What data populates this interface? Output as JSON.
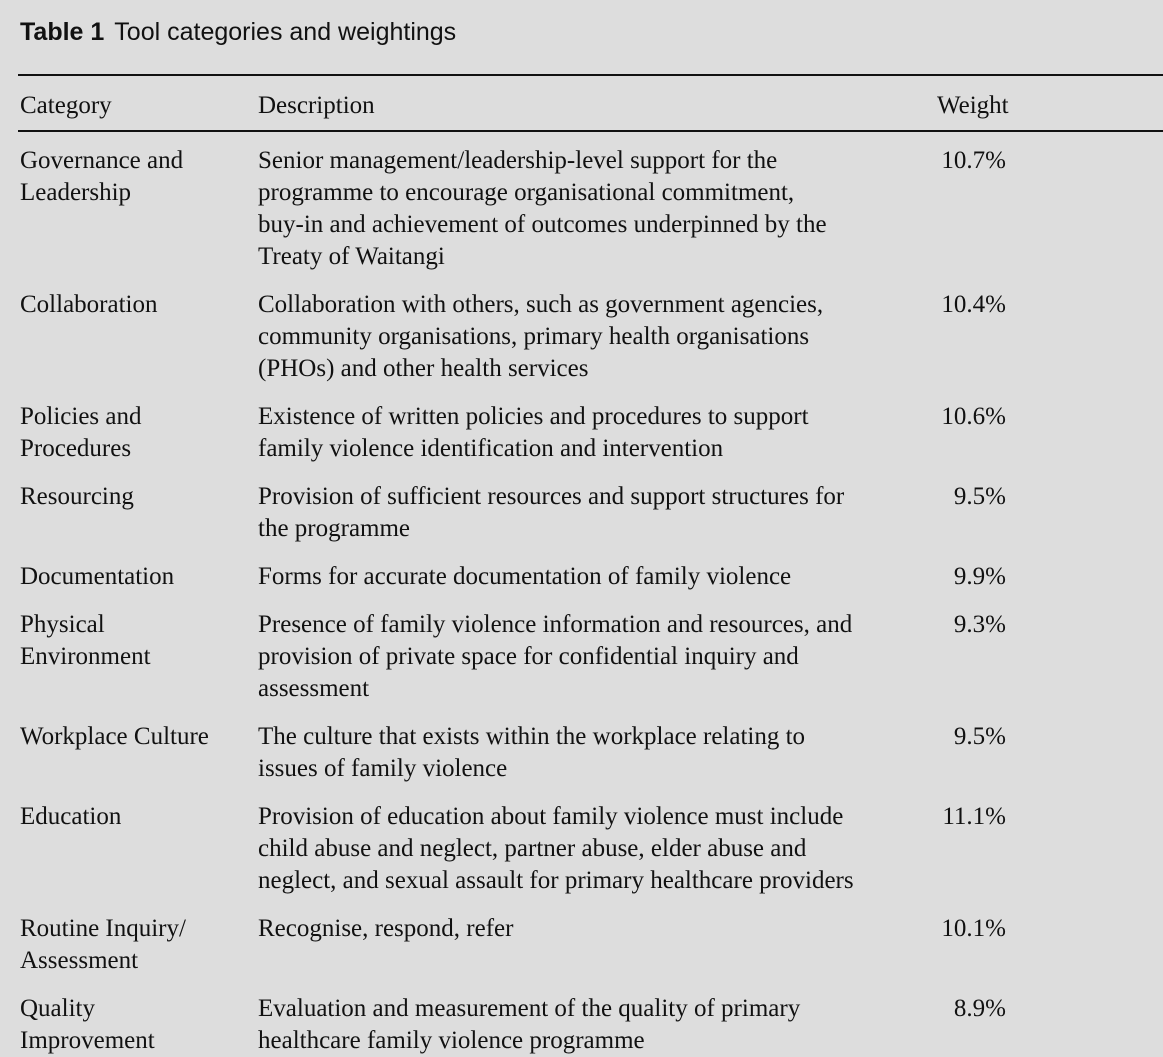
{
  "table": {
    "label": "Table 1",
    "title": "Tool categories and weightings",
    "headers": {
      "category": "Category",
      "description": "Description",
      "weight": "Weight"
    },
    "rows": [
      {
        "category": "Governance and\nLeadership",
        "description": "Senior management/leadership-level support for the\nprogramme to encourage organisational commitment,\nbuy-in and achievement of outcomes underpinned by the\nTreaty of Waitangi",
        "weight": "10.7%"
      },
      {
        "category": "Collaboration",
        "description": "Collaboration with others, such as government agencies,\ncommunity organisations, primary health organisations\n(PHOs) and other health services",
        "weight": "10.4%"
      },
      {
        "category": "Policies and\nProcedures",
        "description": "Existence of written policies and procedures to support\nfamily violence identification and intervention",
        "weight": "10.6%"
      },
      {
        "category": "Resourcing",
        "description": "Provision of sufficient resources and support structures for\nthe programme",
        "weight": "9.5%"
      },
      {
        "category": "Documentation",
        "description": "Forms for accurate documentation of family violence",
        "weight": "9.9%"
      },
      {
        "category": "Physical\nEnvironment",
        "description": "Presence of family violence information and resources, and\nprovision of private space for confidential inquiry and\nassessment",
        "weight": "9.3%"
      },
      {
        "category": "Workplace Culture",
        "description": "The culture that exists within the workplace relating to\nissues of family violence",
        "weight": "9.5%"
      },
      {
        "category": "Education",
        "description": "Provision of education about family violence must include\nchild abuse and neglect, partner abuse, elder abuse and\nneglect, and sexual assault for primary healthcare providers",
        "weight": "11.1%"
      },
      {
        "category": "Routine Inquiry/\nAssessment",
        "description": "Recognise, respond, refer",
        "weight": "10.1%"
      },
      {
        "category": "Quality\nImprovement",
        "description": "Evaluation and measurement of the quality of primary\nhealthcare family violence programme",
        "weight": "8.9%"
      }
    ]
  }
}
